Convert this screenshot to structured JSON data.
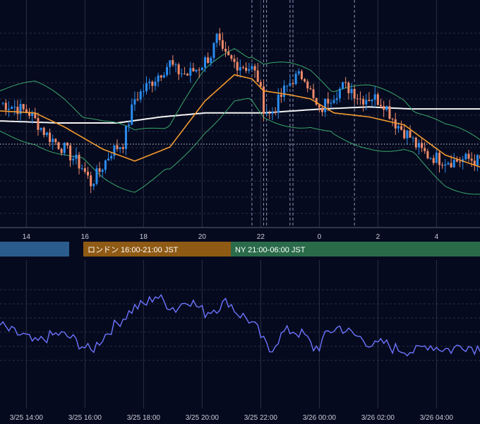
{
  "colors": {
    "background": "#050a1e",
    "grid": "#2a2f45",
    "up_candle": "#2a8cf0",
    "down_candle": "#f08a6a",
    "bollinger": "#3aa86a",
    "ma_short": "#f29a2e",
    "ma_long": "#f4f4f4",
    "oscillator": "#6d74ff",
    "tokyo_session": "#2b5c8e",
    "london_session": "#8f5a14",
    "ny_session": "#2a6b4a"
  },
  "sessions": [
    {
      "name": "tokyo",
      "label": ""
    },
    {
      "name": "london",
      "label": "ロンドン 16:00-21:00 JST"
    },
    {
      "name": "ny",
      "label": "NY 21:00-06:00 JST"
    }
  ],
  "chart_data": [
    {
      "type": "candlestick",
      "title": "",
      "x_ticks": [
        "14",
        "16",
        "18",
        "20",
        "22",
        "0",
        "2",
        "4"
      ],
      "price_range": [
        0,
        100
      ],
      "grid": true,
      "overlays": [
        "bollinger-bands",
        "moving-average-orange",
        "moving-average-white",
        "event-markers"
      ],
      "ma_short_anchors": [
        [
          0,
          56
        ],
        [
          12,
          55
        ],
        [
          22,
          48
        ],
        [
          35,
          37
        ],
        [
          46,
          31
        ],
        [
          58,
          38
        ],
        [
          70,
          61
        ],
        [
          80,
          74
        ],
        [
          86,
          72
        ],
        [
          90,
          66
        ],
        [
          99,
          64
        ],
        [
          106,
          62
        ],
        [
          114,
          55
        ],
        [
          126,
          53
        ],
        [
          138,
          49
        ],
        [
          152,
          34
        ],
        [
          164,
          28
        ]
      ],
      "ma_long_anchors": [
        [
          0,
          51
        ],
        [
          20,
          50
        ],
        [
          40,
          50
        ],
        [
          55,
          53
        ],
        [
          70,
          55
        ],
        [
          90,
          55
        ],
        [
          110,
          57
        ],
        [
          126,
          58
        ],
        [
          140,
          57
        ],
        [
          164,
          57
        ]
      ],
      "close_anchors": [
        [
          0,
          60
        ],
        [
          5,
          58
        ],
        [
          10,
          55
        ],
        [
          16,
          44
        ],
        [
          22,
          37
        ],
        [
          28,
          28
        ],
        [
          31,
          20
        ],
        [
          34,
          26
        ],
        [
          38,
          36
        ],
        [
          42,
          40
        ],
        [
          46,
          62
        ],
        [
          50,
          68
        ],
        [
          54,
          74
        ],
        [
          58,
          80
        ],
        [
          60,
          76
        ],
        [
          64,
          74
        ],
        [
          68,
          78
        ],
        [
          72,
          84
        ],
        [
          74,
          92
        ],
        [
          76,
          84
        ],
        [
          80,
          80
        ],
        [
          86,
          77
        ],
        [
          88,
          72
        ],
        [
          90,
          58
        ],
        [
          92,
          54
        ],
        [
          94,
          58
        ],
        [
          97,
          66
        ],
        [
          100,
          72
        ],
        [
          104,
          74
        ],
        [
          107,
          61
        ],
        [
          109,
          55
        ],
        [
          112,
          62
        ],
        [
          117,
          68
        ],
        [
          120,
          67
        ],
        [
          123,
          62
        ],
        [
          127,
          63
        ],
        [
          131,
          60
        ],
        [
          135,
          50
        ],
        [
          140,
          43
        ],
        [
          143,
          37
        ],
        [
          146,
          34
        ],
        [
          150,
          32
        ],
        [
          155,
          31
        ],
        [
          160,
          32
        ],
        [
          164,
          31
        ]
      ],
      "event_markers": [
        86,
        90,
        91,
        99,
        100,
        121
      ]
    },
    {
      "type": "line",
      "title": "",
      "x_ticks": [
        "3/25 14:00",
        "3/25 16:00",
        "3/25 18:00",
        "3/25 20:00",
        "3/25 22:00",
        "3/26 00:00",
        "3/26 02:00",
        "3/26 04:00"
      ],
      "y_range": [
        0,
        100
      ],
      "grid": true,
      "anchors": [
        [
          0,
          56
        ],
        [
          4,
          48
        ],
        [
          8,
          44
        ],
        [
          12,
          35
        ],
        [
          16,
          42
        ],
        [
          20,
          46
        ],
        [
          24,
          42
        ],
        [
          28,
          33
        ],
        [
          31,
          26
        ],
        [
          34,
          38
        ],
        [
          38,
          52
        ],
        [
          42,
          64
        ],
        [
          46,
          76
        ],
        [
          50,
          80
        ],
        [
          53,
          90
        ],
        [
          56,
          82
        ],
        [
          60,
          74
        ],
        [
          64,
          86
        ],
        [
          67,
          78
        ],
        [
          70,
          70
        ],
        [
          74,
          76
        ],
        [
          78,
          83
        ],
        [
          81,
          70
        ],
        [
          85,
          62
        ],
        [
          88,
          50
        ],
        [
          90,
          37
        ],
        [
          92,
          27
        ],
        [
          94,
          36
        ],
        [
          97,
          48
        ],
        [
          100,
          50
        ],
        [
          104,
          44
        ],
        [
          107,
          30
        ],
        [
          109,
          32
        ],
        [
          112,
          48
        ],
        [
          116,
          54
        ],
        [
          120,
          46
        ],
        [
          124,
          40
        ],
        [
          128,
          32
        ],
        [
          131,
          36
        ],
        [
          134,
          30
        ],
        [
          138,
          28
        ],
        [
          142,
          26
        ],
        [
          146,
          34
        ],
        [
          150,
          30
        ],
        [
          154,
          28
        ],
        [
          158,
          34
        ],
        [
          162,
          30
        ],
        [
          164,
          31
        ]
      ]
    }
  ]
}
